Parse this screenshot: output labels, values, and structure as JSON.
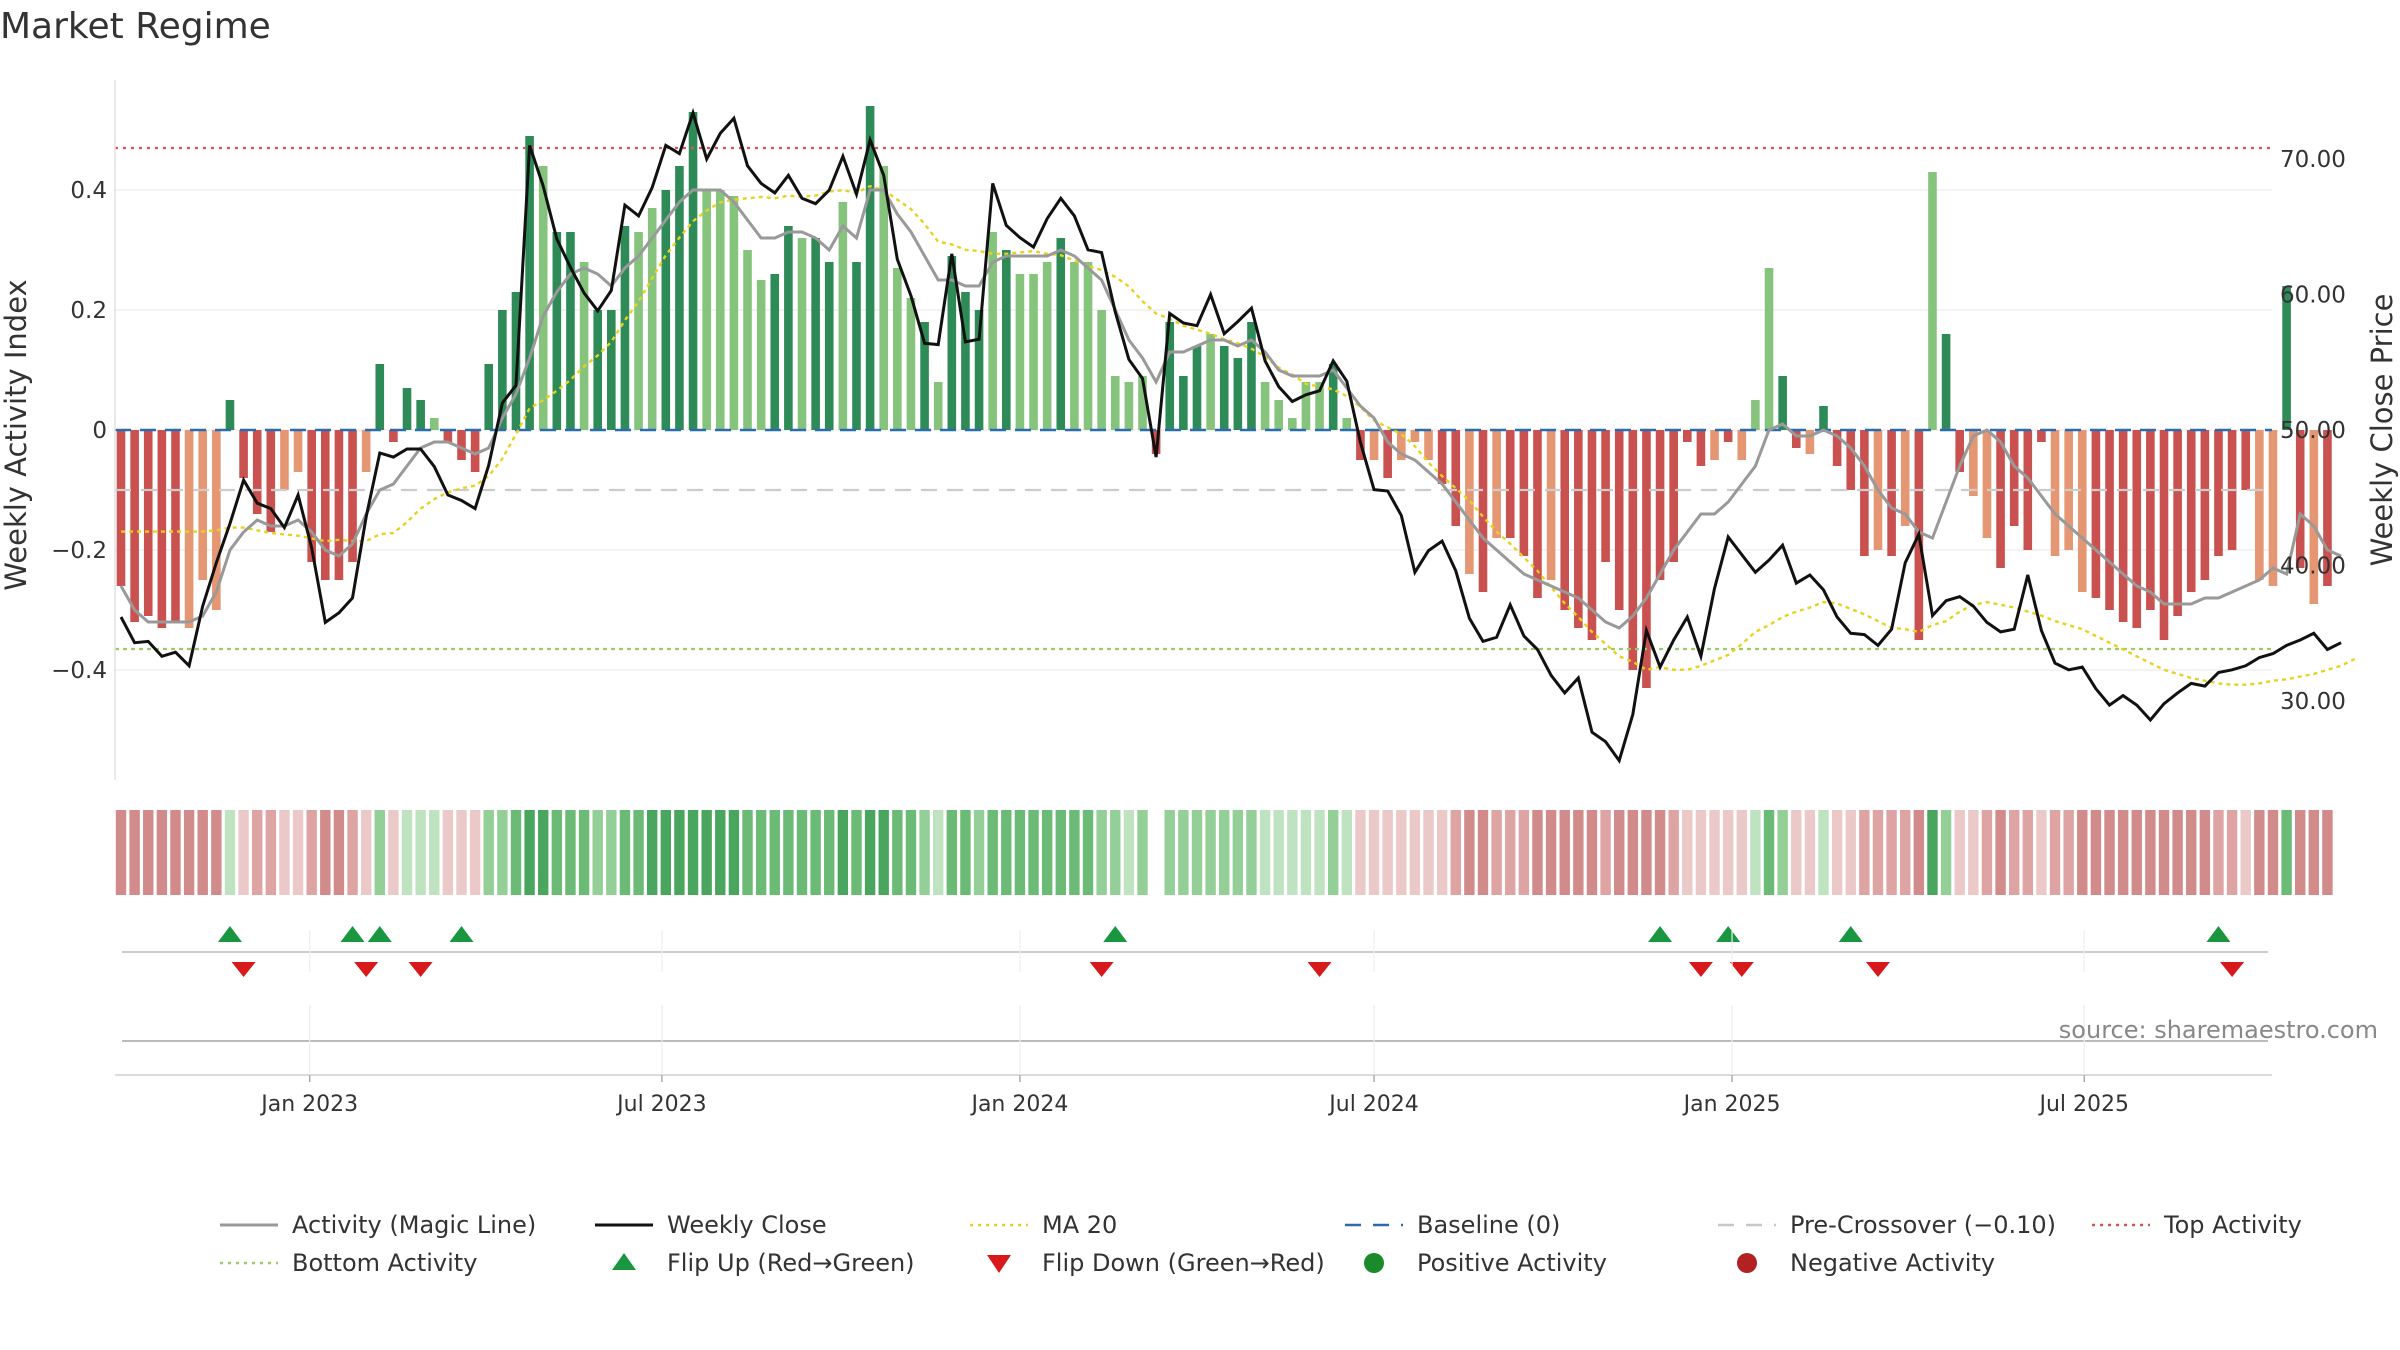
{
  "title": "Market Regime",
  "source": "source: sharemaestro.com",
  "legend": [
    {
      "label": "Activity (Magic Line)",
      "kind": "line",
      "color": "#999999"
    },
    {
      "label": "Weekly Close",
      "kind": "line",
      "color": "#111111"
    },
    {
      "label": "MA 20",
      "kind": "dotted",
      "color": "#e8d21d"
    },
    {
      "label": "Baseline (0)",
      "kind": "dashed",
      "color": "#2b6cb0"
    },
    {
      "label": "Pre-Crossover (−0.10)",
      "kind": "dashed",
      "color": "#c8c8c8"
    },
    {
      "label": "Top Activity",
      "kind": "dotted",
      "color": "#d9534f"
    },
    {
      "label": "Bottom Activity",
      "kind": "dotted",
      "color": "#9ccc65"
    },
    {
      "label": "Flip Up (Red→Green)",
      "kind": "tri-up",
      "color": "#1a9641"
    },
    {
      "label": "Flip Down (Green→Red)",
      "kind": "tri-down",
      "color": "#d7191c"
    },
    {
      "label": "Positive Activity",
      "kind": "dot",
      "color": "#1a8a2a"
    },
    {
      "label": "Negative Activity",
      "kind": "dot",
      "color": "#b22222"
    }
  ],
  "colors": {
    "pos_strong": "#2e8b57",
    "pos_light": "#86c47e",
    "neg_strong": "#c95150",
    "neg_light": "#e59673",
    "up": "#1a9641",
    "down": "#d7191c"
  },
  "chart_data": {
    "type": "bar",
    "x_start": "2022-09-26",
    "x_step_days": 7,
    "y_left": {
      "label": "Weekly Activity Index",
      "ticks": [
        0.4,
        0.2,
        0,
        -0.2,
        -0.4
      ],
      "tick_labels": [
        "0.4",
        "0.2",
        "0",
        "−0.2",
        "−0.4"
      ],
      "range": [
        -0.58,
        0.58
      ]
    },
    "y_right": {
      "label": "Weekly Close Price",
      "ticks": [
        70,
        60,
        50,
        40,
        30
      ],
      "tick_labels": [
        "70.00",
        "60.00",
        "50.00",
        "40.00",
        "30.00"
      ],
      "range": [
        24.6,
        75.8
      ]
    },
    "x_ticks": [
      {
        "date": "2023-01-01",
        "label": "Jan 2023"
      },
      {
        "date": "2023-07-01",
        "label": "Jul 2023"
      },
      {
        "date": "2024-01-01",
        "label": "Jan 2024"
      },
      {
        "date": "2024-07-01",
        "label": "Jul 2024"
      },
      {
        "date": "2025-01-01",
        "label": "Jan 2025"
      },
      {
        "date": "2025-07-01",
        "label": "Jul 2025"
      }
    ],
    "top_activity": 0.47,
    "bottom_activity": -0.365,
    "pre_crossover": -0.1,
    "baseline": 0,
    "activity": [
      -0.26,
      -0.32,
      -0.31,
      -0.33,
      -0.32,
      -0.33,
      -0.25,
      -0.3,
      0.05,
      -0.08,
      -0.14,
      -0.17,
      -0.1,
      -0.07,
      -0.22,
      -0.25,
      -0.25,
      -0.22,
      -0.07,
      0.11,
      -0.02,
      0.07,
      0.05,
      0.02,
      -0.02,
      -0.05,
      -0.07,
      0.11,
      0.2,
      0.23,
      0.49,
      0.44,
      0.33,
      0.33,
      0.28,
      0.2,
      0.2,
      0.34,
      0.33,
      0.37,
      0.4,
      0.44,
      0.53,
      0.4,
      0.4,
      0.39,
      0.3,
      0.25,
      0.26,
      0.34,
      0.32,
      0.32,
      0.28,
      0.38,
      0.28,
      0.54,
      0.44,
      0.27,
      0.22,
      0.18,
      0.08,
      0.29,
      0.23,
      0.2,
      0.33,
      0.3,
      0.26,
      0.26,
      0.28,
      0.32,
      0.28,
      0.28,
      0.2,
      0.09,
      0.08,
      0.09,
      -0.04,
      0.18,
      0.09,
      0.14,
      0.16,
      0.14,
      0.12,
      0.18,
      0.08,
      0.05,
      0.02,
      0.08,
      0.08,
      0.11,
      0.02,
      -0.05,
      -0.05,
      -0.08,
      -0.05,
      -0.02,
      -0.05,
      -0.09,
      -0.16,
      -0.24,
      -0.27,
      -0.18,
      -0.18,
      -0.21,
      -0.28,
      -0.25,
      -0.3,
      -0.33,
      -0.35,
      -0.22,
      -0.3,
      -0.4,
      -0.43,
      -0.25,
      -0.22,
      -0.02,
      -0.06,
      -0.05,
      -0.02,
      -0.05,
      0.05,
      0.27,
      0.09,
      -0.03,
      -0.04,
      0.04,
      -0.06,
      -0.1,
      -0.21,
      -0.2,
      -0.21,
      -0.16,
      -0.35,
      0.43,
      0.16,
      -0.07,
      -0.11,
      -0.18,
      -0.23,
      -0.16,
      -0.2,
      -0.02,
      -0.21,
      -0.2,
      -0.27,
      -0.28,
      -0.3,
      -0.32,
      -0.33,
      -0.3,
      -0.35,
      -0.31,
      -0.27,
      -0.25,
      -0.21,
      -0.2,
      -0.1,
      -0.25,
      -0.26,
      0.24,
      -0.23,
      -0.29,
      -0.26
    ],
    "strong": [
      1,
      1,
      1,
      1,
      1,
      0,
      0,
      0,
      1,
      1,
      1,
      1,
      0,
      0,
      1,
      1,
      1,
      1,
      0,
      1,
      1,
      1,
      1,
      0,
      1,
      1,
      1,
      1,
      1,
      1,
      1,
      0,
      1,
      1,
      0,
      1,
      1,
      1,
      0,
      0,
      1,
      1,
      1,
      0,
      0,
      0,
      0,
      0,
      1,
      1,
      0,
      1,
      1,
      0,
      1,
      1,
      0,
      0,
      0,
      1,
      0,
      1,
      1,
      1,
      0,
      1,
      0,
      0,
      0,
      1,
      0,
      0,
      0,
      0,
      0,
      0,
      1,
      1,
      1,
      1,
      0,
      1,
      1,
      1,
      0,
      0,
      0,
      0,
      0,
      1,
      0,
      1,
      0,
      1,
      0,
      0,
      0,
      1,
      1,
      0,
      1,
      0,
      1,
      1,
      1,
      0,
      1,
      1,
      1,
      1,
      1,
      1,
      1,
      1,
      1,
      1,
      1,
      0,
      1,
      0,
      0,
      0,
      1,
      1,
      0,
      1,
      1,
      1,
      1,
      0,
      1,
      0,
      1,
      0,
      1,
      1,
      0,
      0,
      1,
      1,
      1,
      1,
      0,
      0,
      0,
      1,
      1,
      1,
      1,
      1,
      1,
      1,
      1,
      1,
      1,
      1,
      1,
      0,
      0,
      1,
      1,
      0,
      1,
      1,
      0
    ],
    "magic_line": [
      -0.26,
      -0.3,
      -0.32,
      -0.32,
      -0.32,
      -0.32,
      -0.31,
      -0.27,
      -0.2,
      -0.17,
      -0.15,
      -0.16,
      -0.16,
      -0.15,
      -0.17,
      -0.2,
      -0.21,
      -0.19,
      -0.14,
      -0.1,
      -0.09,
      -0.06,
      -0.03,
      -0.02,
      -0.02,
      -0.03,
      -0.04,
      -0.03,
      0.02,
      0.06,
      0.12,
      0.19,
      0.23,
      0.26,
      0.27,
      0.26,
      0.24,
      0.27,
      0.29,
      0.32,
      0.35,
      0.38,
      0.4,
      0.4,
      0.4,
      0.38,
      0.35,
      0.32,
      0.32,
      0.33,
      0.33,
      0.32,
      0.3,
      0.34,
      0.32,
      0.4,
      0.4,
      0.36,
      0.33,
      0.29,
      0.25,
      0.25,
      0.24,
      0.24,
      0.28,
      0.29,
      0.29,
      0.29,
      0.29,
      0.3,
      0.29,
      0.27,
      0.25,
      0.2,
      0.15,
      0.12,
      0.08,
      0.13,
      0.13,
      0.14,
      0.15,
      0.15,
      0.14,
      0.15,
      0.13,
      0.1,
      0.09,
      0.09,
      0.09,
      0.1,
      0.07,
      0.04,
      0.02,
      -0.02,
      -0.04,
      -0.05,
      -0.07,
      -0.09,
      -0.12,
      -0.15,
      -0.18,
      -0.2,
      -0.22,
      -0.24,
      -0.25,
      -0.26,
      -0.27,
      -0.28,
      -0.3,
      -0.32,
      -0.33,
      -0.31,
      -0.28,
      -0.24,
      -0.2,
      -0.17,
      -0.14,
      -0.14,
      -0.12,
      -0.09,
      -0.06,
      0.0,
      0.01,
      -0.01,
      -0.01,
      0.0,
      -0.01,
      -0.03,
      -0.06,
      -0.1,
      -0.13,
      -0.14,
      -0.17,
      -0.18,
      -0.12,
      -0.06,
      -0.01,
      0.0,
      -0.02,
      -0.06,
      -0.08,
      -0.11,
      -0.14,
      -0.16,
      -0.18,
      -0.2,
      -0.22,
      -0.24,
      -0.26,
      -0.27,
      -0.29,
      -0.29,
      -0.29,
      -0.28,
      -0.28,
      -0.27,
      -0.26,
      -0.25,
      -0.23,
      -0.24,
      -0.14,
      -0.16,
      -0.2,
      -0.21
    ],
    "weekly_close": [
      36.2,
      34.3,
      34.4,
      33.3,
      33.6,
      32.6,
      37.0,
      40.2,
      43.1,
      46.3,
      44.6,
      44.2,
      42.8,
      45.2,
      41.3,
      35.8,
      36.5,
      37.6,
      43.6,
      48.3,
      48.0,
      48.6,
      48.6,
      47.3,
      45.2,
      44.8,
      44.2,
      47.4,
      52.0,
      53.3,
      71.0,
      68.0,
      64.1,
      62.0,
      60.1,
      58.8,
      60.3,
      66.6,
      65.8,
      67.9,
      71.0,
      70.4,
      73.4,
      70.0,
      71.9,
      73.0,
      69.5,
      68.2,
      67.5,
      68.8,
      67.1,
      66.7,
      67.7,
      70.2,
      67.4,
      71.4,
      68.8,
      62.6,
      59.9,
      56.4,
      56.3,
      63.0,
      56.5,
      56.7,
      68.2,
      65.1,
      64.2,
      63.5,
      65.6,
      67.1,
      65.8,
      63.3,
      63.1,
      58.7,
      55.2,
      53.8,
      48.0,
      58.6,
      57.9,
      57.7,
      60.0,
      57.1,
      58.0,
      59.0,
      55.1,
      53.2,
      52.1,
      52.6,
      52.9,
      55.1,
      53.6,
      49.1,
      45.6,
      45.5,
      43.7,
      39.5,
      41.1,
      41.8,
      39.6,
      36.1,
      34.4,
      34.7,
      37.1,
      34.8,
      33.8,
      31.9,
      30.6,
      31.7,
      27.7,
      27.0,
      25.6,
      29.0,
      35.2,
      32.5,
      34.5,
      36.2,
      33.3,
      38.3,
      42.1,
      40.8,
      39.5,
      40.4,
      41.5,
      38.7,
      39.3,
      38.2,
      36.2,
      35.0,
      34.9,
      34.1,
      35.3,
      40.2,
      42.3,
      36.3,
      37.4,
      37.7,
      37.0,
      35.8,
      35.1,
      35.3,
      39.3,
      35.2,
      32.8,
      32.3,
      32.5,
      30.9,
      29.7,
      30.4,
      29.7,
      28.6,
      29.8,
      30.6,
      31.3,
      31.1,
      32.1,
      32.3,
      32.6,
      33.2,
      33.5,
      34.1,
      34.5,
      35.0,
      33.8,
      34.3
    ],
    "ma20": [
      42.5,
      42.5,
      42.5,
      42.5,
      42.5,
      42.5,
      42.5,
      42.6,
      42.8,
      42.8,
      42.6,
      42.4,
      42.3,
      42.2,
      42.0,
      41.8,
      41.9,
      41.8,
      41.8,
      42.3,
      42.4,
      43.2,
      44.2,
      44.9,
      45.4,
      45.7,
      45.9,
      46.6,
      47.9,
      49.7,
      51.6,
      52.2,
      52.9,
      53.7,
      54.7,
      55.5,
      56.5,
      58.1,
      59.5,
      61.2,
      62.9,
      64.2,
      65.4,
      66.2,
      66.8,
      67.0,
      67.1,
      67.2,
      67.1,
      67.3,
      67.2,
      67.3,
      67.6,
      67.7,
      67.5,
      68.0,
      67.7,
      67.0,
      66.3,
      65.2,
      63.9,
      63.7,
      63.3,
      63.2,
      63.0,
      63.0,
      63.1,
      63.2,
      63.0,
      62.9,
      62.5,
      62.1,
      61.8,
      61.3,
      60.6,
      59.5,
      58.6,
      58.2,
      57.7,
      57.4,
      57.1,
      56.7,
      56.4,
      56.0,
      55.4,
      54.6,
      54.1,
      53.4,
      53.2,
      53.0,
      52.5,
      51.7,
      50.7,
      50.2,
      49.7,
      48.8,
      47.6,
      46.6,
      45.7,
      44.8,
      43.6,
      42.5,
      41.6,
      40.6,
      39.6,
      38.4,
      37.2,
      36.2,
      35.1,
      34.2,
      33.3,
      32.9,
      32.3,
      32.5,
      32.3,
      32.3,
      32.6,
      33.0,
      33.4,
      34.2,
      35.1,
      35.6,
      36.2,
      36.6,
      36.9,
      37.3,
      37.2,
      36.8,
      36.4,
      35.9,
      35.4,
      35.3,
      35.1,
      35.6,
      35.9,
      36.6,
      37.1,
      37.3,
      37.1,
      36.9,
      36.6,
      36.3,
      35.9,
      35.6,
      35.3,
      34.8,
      34.3,
      33.8,
      33.3,
      32.8,
      32.3,
      32.0,
      31.7,
      31.5,
      31.3,
      31.2,
      31.2,
      31.3,
      31.5,
      31.6,
      31.8,
      32.0,
      32.3,
      32.6,
      33.1
    ],
    "flip_up": [
      8,
      17,
      19,
      25,
      73,
      113,
      118,
      127,
      154
    ],
    "flip_down": [
      9,
      18,
      22,
      72,
      88,
      116,
      119,
      129,
      155
    ],
    "regime_band": [
      -0.26,
      -0.32,
      -0.31,
      -0.33,
      -0.32,
      -0.33,
      -0.25,
      -0.3,
      0.05,
      -0.08,
      -0.14,
      -0.17,
      -0.1,
      -0.07,
      -0.22,
      -0.25,
      -0.25,
      -0.22,
      -0.07,
      0.11,
      -0.02,
      0.07,
      0.05,
      0.02,
      -0.02,
      -0.05,
      -0.07,
      0.11,
      0.2,
      0.23,
      0.49,
      0.44,
      0.33,
      0.33,
      0.28,
      0.2,
      0.2,
      0.34,
      0.33,
      0.37,
      0.4,
      0.44,
      0.53,
      0.4,
      0.4,
      0.39,
      0.3,
      0.25,
      0.26,
      0.34,
      0.32,
      0.32,
      0.28,
      0.38,
      0.28,
      0.54,
      0.44,
      0.27,
      0.22,
      0.18,
      0.08,
      0.29,
      0.23,
      0.2,
      0.33,
      0.3,
      0.26,
      0.26,
      0.28,
      0.32,
      0.28,
      0.28,
      0.2,
      0.09,
      0.08,
      0.09,
      null,
      0.18,
      0.09,
      0.14,
      0.16,
      0.14,
      0.12,
      0.18,
      0.08,
      0.05,
      0.02,
      0.08,
      0.08,
      0.11,
      0.02,
      -0.05,
      -0.05,
      -0.08,
      -0.05,
      -0.02,
      -0.05,
      -0.09,
      -0.16,
      -0.24,
      -0.27,
      -0.18,
      -0.18,
      -0.21,
      -0.28,
      -0.25,
      -0.3,
      -0.33,
      -0.35,
      -0.22,
      -0.3,
      -0.4,
      -0.43,
      -0.25,
      -0.22,
      -0.02,
      -0.06,
      -0.05,
      -0.02,
      -0.05,
      0.05,
      0.27,
      0.09,
      -0.03,
      -0.04,
      0.04,
      -0.06,
      -0.1,
      -0.21,
      -0.2,
      -0.21,
      -0.16,
      -0.35,
      0.43,
      0.16,
      -0.07,
      -0.11,
      -0.18,
      -0.23,
      -0.16,
      -0.2,
      -0.02,
      -0.21,
      -0.2,
      -0.27,
      -0.28,
      -0.3,
      -0.32,
      -0.33,
      -0.3,
      -0.35,
      -0.31,
      -0.27,
      -0.25,
      -0.21,
      -0.2,
      -0.1,
      -0.25,
      -0.26,
      0.24,
      -0.23,
      -0.29,
      -0.26
    ]
  }
}
